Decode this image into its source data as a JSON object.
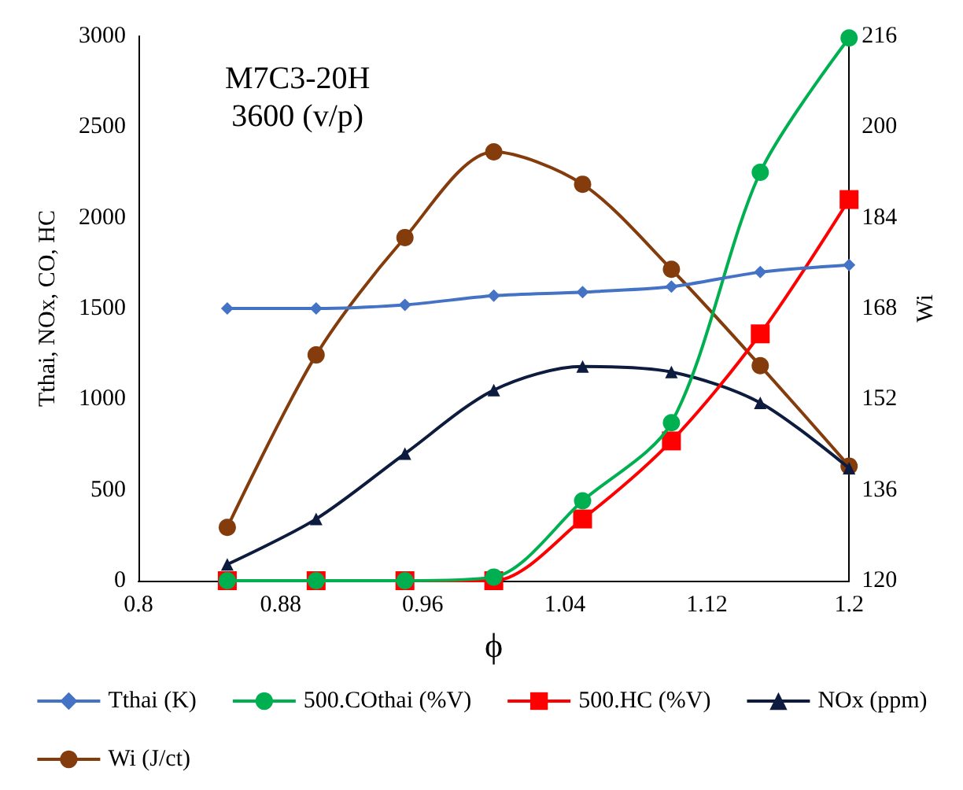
{
  "chart_data": {
    "type": "line",
    "xlabel": "ϕ",
    "ylabel": "Tthai, NOx, CO, HC",
    "y2label": "Wi",
    "annotations": [
      "M7C3-20H\n3600 (v/p)"
    ],
    "x": [
      0.85,
      0.9,
      0.95,
      1.0,
      1.05,
      1.1,
      1.15,
      1.2
    ],
    "series": [
      {
        "name": "Tthai (K)",
        "color": "#4472c4",
        "marker": "diamond",
        "values": [
          1500,
          1500,
          1520,
          1570,
          1590,
          1620,
          1700,
          1740
        ]
      },
      {
        "name": "500.COthai (%V)",
        "color": "#00b050",
        "marker": "circle",
        "values": [
          0,
          0,
          0,
          20,
          440,
          870,
          2250,
          2990
        ]
      },
      {
        "name": "500.HC (%V)",
        "color": "#ff0000",
        "marker": "square",
        "values": [
          0,
          0,
          0,
          0,
          340,
          770,
          1360,
          2100
        ]
      },
      {
        "name": "NOx (ppm)",
        "color": "#0d1b3e",
        "marker": "triangle",
        "values": [
          90,
          340,
          700,
          1050,
          1180,
          1150,
          980,
          620
        ]
      },
      {
        "name": "Wi (J/ct)",
        "color": "#843c0c",
        "marker": "circle",
        "axis": "y2",
        "values": [
          129.4,
          159.8,
          180.5,
          195.6,
          189.9,
          174.9,
          157.9,
          140.2
        ]
      }
    ],
    "xlim": [
      0.8,
      1.2
    ],
    "xticks": [
      0.8,
      0.88,
      0.96,
      1.04,
      1.12,
      1.2
    ],
    "ylim": [
      0,
      3000
    ],
    "yticks": [
      0,
      500,
      1000,
      1500,
      2000,
      2500,
      3000
    ],
    "y2lim": [
      120,
      216
    ],
    "y2ticks": [
      120,
      136,
      152,
      168,
      184,
      200,
      216
    ],
    "grid": false,
    "legend": "bottom"
  }
}
